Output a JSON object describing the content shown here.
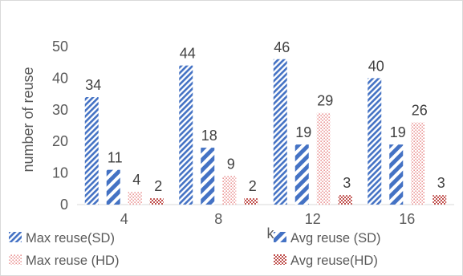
{
  "chart_data": {
    "type": "bar",
    "title": "",
    "xlabel": "k",
    "ylabel": "number of reuse",
    "categories": [
      "4",
      "8",
      "12",
      "16"
    ],
    "ylim": [
      0,
      50
    ],
    "yticks": [
      0,
      10,
      20,
      30,
      40,
      50
    ],
    "grid": false,
    "legend_position": "bottom",
    "series": [
      {
        "name": "Max reuse(SD)",
        "values": [
          34,
          44,
          46,
          40
        ],
        "color": "#4472c4",
        "pattern": "dark-diagonal"
      },
      {
        "name": "Avg reuse (SD)",
        "values": [
          11,
          18,
          19,
          19
        ],
        "color": "#4472c4",
        "pattern": "wide-diagonal"
      },
      {
        "name": "Max reuse (HD)",
        "values": [
          4,
          9,
          29,
          26
        ],
        "color": "#e06060",
        "pattern": "dots"
      },
      {
        "name": "Avg reuse(HD)",
        "values": [
          2,
          2,
          3,
          3
        ],
        "color": "#c0504d",
        "pattern": "checker"
      }
    ],
    "data_labels": [
      [
        "34",
        "44",
        "46",
        "40"
      ],
      [
        "11",
        "18",
        "19",
        "19"
      ],
      [
        "4",
        "9",
        "29",
        "26"
      ],
      [
        "2",
        "2",
        "3",
        "3"
      ]
    ]
  }
}
